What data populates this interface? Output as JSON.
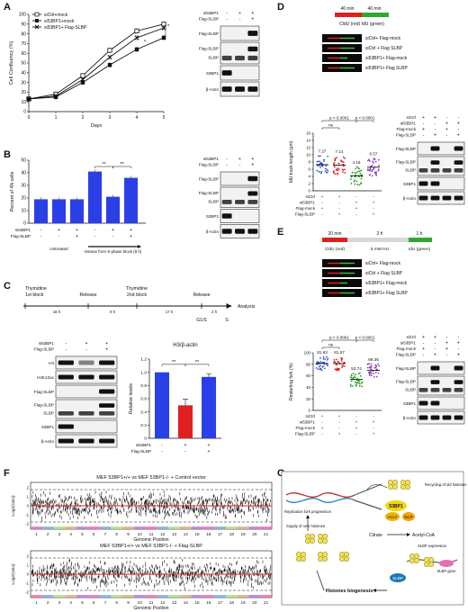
{
  "panels": {
    "A": {
      "label": "A",
      "chart_data": {
        "type": "line",
        "x": [
          0,
          1,
          2,
          3,
          4,
          5
        ],
        "series": [
          {
            "name": "siCtrl+mock",
            "marker": "open-square",
            "values": [
              13,
              18,
              37,
              63,
              83,
              90
            ]
          },
          {
            "name": "si53BP1+mock",
            "marker": "filled-square",
            "values": [
              13,
              15,
              30,
              48,
              64,
              76
            ]
          },
          {
            "name": "si53BP1+ Flag-SLBP",
            "marker": "x",
            "values": [
              13,
              16,
              33,
              56,
              76,
              86
            ]
          }
        ],
        "xlabel": "Days",
        "ylabel": "Cell Confluency (%)",
        "xlim": [
          0,
          5
        ],
        "ylim": [
          0,
          100
        ],
        "yticks": [
          "0",
          "10",
          "20",
          "30",
          "40",
          "50",
          "60",
          "70",
          "80",
          "90",
          "100"
        ],
        "xticks": [
          "0",
          "1",
          "2",
          "3",
          "4",
          "5"
        ],
        "annotations": [
          "*",
          "*"
        ]
      },
      "blot": {
        "rows": [
          {
            "label": "si53BP1",
            "marks": [
              "-",
              "+",
              "+"
            ]
          },
          {
            "label": "Flag-SLBP",
            "marks": [
              "-",
              "-",
              "+"
            ]
          }
        ],
        "bands": [
          "Flag-SLBP",
          "Flag-SLBP",
          "SLBP",
          "53BP1",
          "β-Actin"
        ]
      }
    },
    "B": {
      "label": "B",
      "chart_data": {
        "type": "bar",
        "ylabel": "Percent of 4N cells",
        "ylim": [
          0,
          50
        ],
        "yticks": [
          "0",
          "10",
          "20",
          "30",
          "40",
          "50"
        ],
        "values": [
          19,
          19,
          19,
          41,
          21,
          36
        ],
        "colors": [
          "#2b3fe6",
          "#2b3fe6",
          "#2b3fe6",
          "#2b3fe6",
          "#2b3fe6",
          "#2b3fe6"
        ],
        "rows": [
          {
            "label": "si53BP1",
            "marks": [
              "-",
              "+",
              "+",
              "-",
              "+",
              "+"
            ]
          },
          {
            "label": "Flag-SLBP",
            "marks": [
              "-",
              "-",
              "+",
              "-",
              "-",
              "+"
            ]
          }
        ],
        "groups": [
          "Untreated",
          "release from S-phase block (8 h)"
        ],
        "annotations": [
          "**",
          "**"
        ]
      },
      "blot": {
        "rows": [
          {
            "label": "si53BP1",
            "marks": [
              "-",
              "+",
              "+"
            ]
          },
          {
            "label": "Flag-SLBP",
            "marks": [
              "-",
              "-",
              "+"
            ]
          }
        ],
        "bands": [
          "Flag-SLBP",
          "Flag-SLBP",
          "SLBP",
          "53BP1",
          "β-Actin"
        ]
      }
    },
    "C": {
      "label": "C",
      "timeline": {
        "steps": [
          "Thymidine",
          "1st block",
          "Release",
          "Thymidine",
          "2nd block",
          "Release"
        ],
        "durations": [
          "18 h",
          "9 h",
          "17 h",
          "2 h"
        ],
        "phases": [
          "G1/S",
          "S"
        ],
        "end_label": "Analysis"
      },
      "blot": {
        "rows": [
          {
            "label": "si53BP1",
            "marks": [
              "-",
              "+",
              "+"
            ]
          },
          {
            "label": "Flag-SLBP",
            "marks": [
              "-",
              "-",
              "+"
            ]
          }
        ],
        "bands": [
          "H3",
          "H4K12ac",
          "Flag-SLBP",
          "Flag-SLBP",
          "SLBP",
          "53BP1",
          "β-Actin"
        ]
      },
      "chart_data": {
        "type": "bar",
        "title": "H3/β-actin",
        "ylabel": "Relative levels",
        "ylim": [
          0,
          1.2
        ],
        "yticks": [
          "0",
          "0.2",
          "0.4",
          "0.6",
          "0.8",
          "1.0",
          "1.2"
        ],
        "values": [
          1.0,
          0.5,
          0.93
        ],
        "errors": [
          0.0,
          0.09,
          0.05
        ],
        "colors": [
          "#2b3fe6",
          "#e02020",
          "#2b3fe6"
        ],
        "rows": [
          {
            "label": "si53BP1",
            "marks": [
              "-",
              "+",
              "+"
            ]
          },
          {
            "label": "Flag-SLBP",
            "marks": [
              "-",
              "-",
              "+"
            ]
          }
        ],
        "annotations": [
          "**",
          "**"
        ]
      }
    },
    "D": {
      "label": "D",
      "scheme": {
        "first": "40 min",
        "second": "40 min",
        "caption": "CldU (red) IdU (green)"
      },
      "fibers": [
        "siCtrl+ Flag-mock",
        "siCtrl + Flag SLBP",
        "si53BP1+ Flag-mock",
        "si53BP1+ Flag SLBP"
      ],
      "chart_data": {
        "type": "scatter",
        "ylabel": "IdU track length (μm)",
        "ylim": [
          0,
          16
        ],
        "yticks": [
          "0",
          "2",
          "4",
          "6",
          "8",
          "10",
          "12",
          "14",
          "16"
        ],
        "means": [
          7.27,
          7.14,
          4.18,
          6.57
        ],
        "mean_labels": [
          "7.27",
          "7.14",
          "4.18",
          "6.57"
        ],
        "colors": [
          "#3a55d9",
          "#e02020",
          "#27a027",
          "#8e3bbf"
        ],
        "pvalues": [
          "ns",
          "p < 0.0001",
          "p < 0.0001"
        ],
        "rows": [
          {
            "label": "siCtrl",
            "marks": [
              "+",
              "+",
              "-",
              "-"
            ]
          },
          {
            "label": "si53BP1",
            "marks": [
              "-",
              "-",
              "+",
              "+"
            ]
          },
          {
            "label": "Flag-mock",
            "marks": [
              "+",
              "-",
              "+",
              "-"
            ]
          },
          {
            "label": "Flag-SLBP",
            "marks": [
              "-",
              "+",
              "-",
              "+"
            ]
          }
        ]
      },
      "blot": {
        "rows": [
          {
            "label": "siCtrl",
            "marks": [
              "+",
              "+",
              "-",
              "-"
            ]
          },
          {
            "label": "si53BP1",
            "marks": [
              "-",
              "-",
              "+",
              "+"
            ]
          },
          {
            "label": "Flag-mock",
            "marks": [
              "+",
              "-",
              "+",
              "-"
            ]
          },
          {
            "label": "Flag-SLBP",
            "marks": [
              "-",
              "+",
              "-",
              "+"
            ]
          }
        ],
        "bands": [
          "Flag-SLBP",
          "Flag-SLBP",
          "SLBP",
          "53BP1",
          "β-Actin"
        ]
      }
    },
    "E": {
      "label": "E",
      "scheme": {
        "first": "20 min",
        "second": "2 h",
        "third": "1 h",
        "caption1": "CldU (red)",
        "caption2": "5 mM HU",
        "caption3": "IdU (green)"
      },
      "fibers": [
        "siCtrl+ Flag-mock",
        "siCtrl + Flag SLBP",
        "si53BP1+ Flag-mock",
        "si53BP1+ Flag SLBP"
      ],
      "chart_data": {
        "type": "scatter",
        "ylabel": "Restarting fork (%)",
        "ylim": [
          0,
          100
        ],
        "yticks": [
          "0",
          "20",
          "40",
          "60",
          "80",
          "100"
        ],
        "means": [
          81.63,
          81.57,
          53.74,
          69.36
        ],
        "mean_labels": [
          "81.63",
          "81.57",
          "53.74",
          "69.36"
        ],
        "colors": [
          "#3a55d9",
          "#e02020",
          "#27a027",
          "#8e3bbf"
        ],
        "pvalues": [
          "ns",
          "p < 0.0001",
          "p < 0.0001"
        ],
        "rows": [
          {
            "label": "siCtrl",
            "marks": [
              "+",
              "+",
              "-",
              "-"
            ]
          },
          {
            "label": "si53BP1",
            "marks": [
              "-",
              "-",
              "+",
              "+"
            ]
          },
          {
            "label": "Flag-mock",
            "marks": [
              "+",
              "-",
              "+",
              "-"
            ]
          },
          {
            "label": "Flag-SLBP",
            "marks": [
              "-",
              "+",
              "-",
              "+"
            ]
          }
        ]
      },
      "blot": {
        "rows": [
          {
            "label": "siCtrl",
            "marks": [
              "+",
              "+",
              "-",
              "-"
            ]
          },
          {
            "label": "si53BP1",
            "marks": [
              "-",
              "-",
              "+",
              "+"
            ]
          },
          {
            "label": "Flag-mock",
            "marks": [
              "+",
              "-",
              "+",
              "-"
            ]
          },
          {
            "label": "Flag-SLBP",
            "marks": [
              "-",
              "+",
              "-",
              "+"
            ]
          }
        ],
        "bands": [
          "Flag-SLBP",
          "Flag-SLBP",
          "SLBP",
          "53BP1",
          "β-Actin"
        ]
      }
    },
    "F": {
      "label": "F",
      "plots": [
        {
          "title": "MEF 53BP1+/+ vs MEF 53BP1-/- + Control vector",
          "ylabel": "Log2(ratio)",
          "xlabel": "Genomic Position",
          "yticks": [
            "-2",
            "-1",
            "0",
            "1",
            "2"
          ]
        },
        {
          "title": "MEF 53BP1+/+ vs MEF 53BP1-/- + Flag-SLBP",
          "ylabel": "Log2(ratio)",
          "xlabel": "Genomic Position",
          "yticks": [
            "-2",
            "-1",
            "0",
            "1",
            "2"
          ]
        }
      ],
      "chromosomes": [
        "1",
        "2",
        "3",
        "4",
        "5",
        "6",
        "7",
        "8",
        "9",
        "10",
        "11",
        "12",
        "13",
        "14",
        "15",
        "16",
        "17",
        "18",
        "19",
        "20",
        "21"
      ]
    },
    "G": {
      "label": "G",
      "labels": {
        "recycling": "Recycling of old histones",
        "fork": "Replication fork progression",
        "supply": "Supply of new histones",
        "bp": "53BP1",
        "acly": "ACLY",
        "ncp": "NCP",
        "citrate": "Citrate",
        "acoa": "Acetyl-CoA",
        "slbp_exp": "SLBP expression",
        "slbp_gene": "SLBP gene",
        "biogenesis": "Histones biogenesis",
        "slbp": "SLBP"
      }
    }
  }
}
